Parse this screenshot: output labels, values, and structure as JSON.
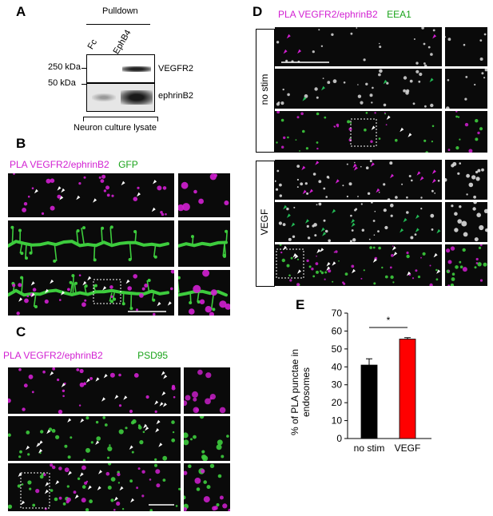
{
  "panel_a": {
    "letter": "A",
    "pulldown": "Pulldown",
    "lanes": [
      "Fc",
      "EphB4"
    ],
    "mw_top": "250 kDa",
    "mw_bottom": "50 kDa",
    "band_top": "VEGFR2",
    "band_bottom": "ephrinB2",
    "lysate": "Neuron culture lysate"
  },
  "panel_b": {
    "letter": "B",
    "label_pla": "PLA VEGFR2/ephrinB2",
    "label_marker": "GFP"
  },
  "panel_c": {
    "letter": "C",
    "label_pla": "PLA VEGFR2/ephrinB2",
    "label_marker": "PSD95"
  },
  "panel_d": {
    "letter": "D",
    "label_pla": "PLA VEGFR2/ephrinB2",
    "label_marker": "EEA1",
    "cond_1": "no stim",
    "cond_2": "VEGF"
  },
  "colors": {
    "magenta": "#d21fd2",
    "green": "#1aa31a",
    "bar_nostim": "#000000",
    "bar_vegf": "#ff0000"
  },
  "chart_data": {
    "type": "bar",
    "letter": "E",
    "categories": [
      "no stim",
      "VEGF"
    ],
    "values": [
      41,
      55.5
    ],
    "errors": [
      3.5,
      0.8
    ],
    "colors": [
      "#000000",
      "#ff0000"
    ],
    "ylabel": "% of PLA punctae in endosomes",
    "ylim": [
      0,
      70
    ],
    "yticks": [
      0,
      10,
      20,
      30,
      40,
      50,
      60,
      70
    ],
    "significance": "*"
  }
}
